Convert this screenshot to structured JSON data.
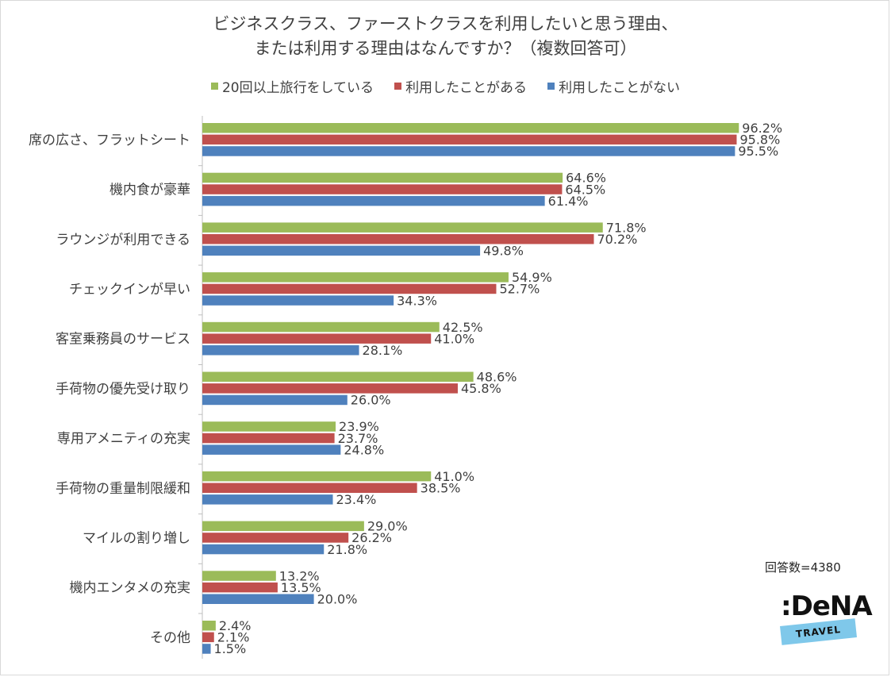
{
  "chart_data": {
    "type": "bar",
    "orientation": "horizontal",
    "title_line1": "ビジネスクラス、ファーストクラスを利用したいと思う理由、",
    "title_line2": "または利用する理由はなんですか？（複数回答可）",
    "categories": [
      "席の広さ、フラットシート",
      "機内食が豪華",
      "ラウンジが利用できる",
      "チェックインが早い",
      "客室乗務員のサービス",
      "手荷物の優先受け取り",
      "専用アメニティの充実",
      "手荷物の重量制限緩和",
      "マイルの割り増し",
      "機内エンタメの充実",
      "その他"
    ],
    "series": [
      {
        "name": "20回以上旅行をしている",
        "color": "#9bbb59",
        "values": [
          96.2,
          64.6,
          71.8,
          54.9,
          42.5,
          48.6,
          23.9,
          41.0,
          29.0,
          13.2,
          2.4
        ],
        "labels": [
          "96.2%",
          "64.6%",
          "71.8%",
          "54.9%",
          "42.5%",
          "48.6%",
          "23.9%",
          "41.0%",
          "29.0%",
          "13.2%",
          "2.4%"
        ]
      },
      {
        "name": "利用したことがある",
        "color": "#c0504d",
        "values": [
          95.8,
          64.5,
          70.2,
          52.7,
          41.0,
          45.8,
          23.7,
          38.5,
          26.2,
          13.5,
          2.1
        ],
        "labels": [
          "95.8%",
          "64.5%",
          "70.2%",
          "52.7%",
          "41.0%",
          "45.8%",
          "23.7%",
          "38.5%",
          "26.2%",
          "13.5%",
          "2.1%"
        ]
      },
      {
        "name": "利用したことがない",
        "color": "#4f81bd",
        "values": [
          95.5,
          61.4,
          49.8,
          34.3,
          28.1,
          26.0,
          24.8,
          23.4,
          21.8,
          20.0,
          1.5
        ],
        "labels": [
          "95.5%",
          "61.4%",
          "49.8%",
          "34.3%",
          "28.1%",
          "26.0%",
          "24.8%",
          "23.4%",
          "21.8%",
          "20.0%",
          "1.5%"
        ]
      }
    ],
    "xlim": [
      0,
      100
    ],
    "grid": false,
    "legend_position": "top"
  },
  "note": "回答数=4380",
  "logo": {
    "main": ":DeNA",
    "ribbon": "TRAVEL"
  }
}
